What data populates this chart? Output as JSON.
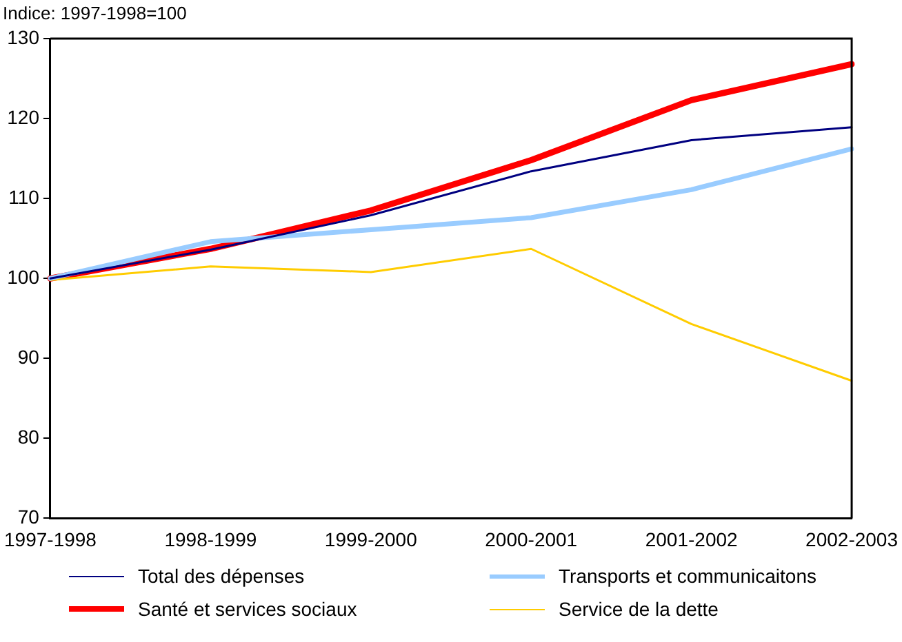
{
  "chart_data": {
    "type": "line",
    "ylabel": "Indice: 1997-1998=100",
    "categories": [
      "1997-1998",
      "1998-1999",
      "1999-2000",
      "2000-2001",
      "2001-2002",
      "2002-2003"
    ],
    "series": [
      {
        "name": "Total des dépenses",
        "color": "#000080",
        "values": [
          100,
          103.6,
          107.9,
          113.4,
          117.3,
          118.9
        ]
      },
      {
        "name": "Transports et communicaitons",
        "color": "#99ccff",
        "values": [
          100,
          104.6,
          106.1,
          107.6,
          111.1,
          116.2
        ]
      },
      {
        "name": "Santé et services sociaux",
        "color": "#ff0000",
        "values": [
          100,
          103.7,
          108.5,
          114.8,
          122.3,
          126.8
        ]
      },
      {
        "name": "Service de la dette",
        "color": "#ffcc00",
        "values": [
          99.8,
          101.5,
          100.8,
          103.7,
          94.3,
          87.2
        ]
      }
    ],
    "ylim": [
      70,
      130
    ],
    "yticks": [
      70,
      80,
      90,
      100,
      110,
      120,
      130
    ],
    "grid": false,
    "legend": "bottom",
    "marker": "none",
    "line_style": "solid"
  }
}
